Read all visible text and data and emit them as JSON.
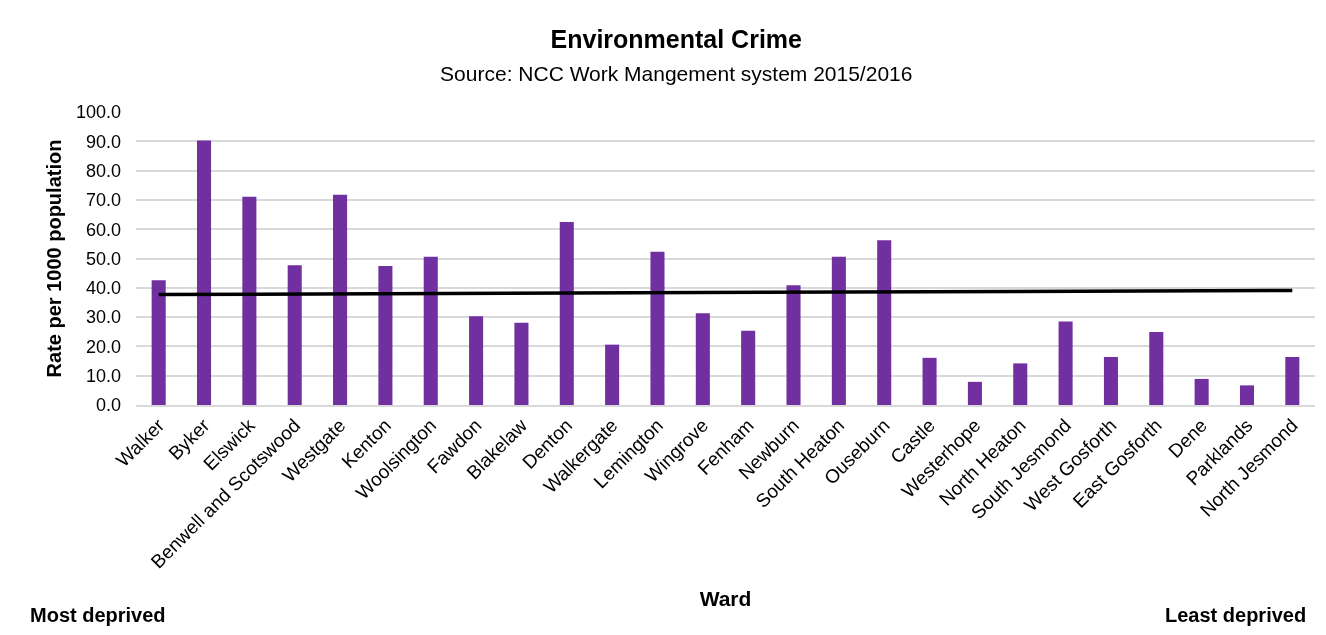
{
  "chart_data": {
    "type": "bar",
    "title": "Environmental Crime",
    "subtitle": "Source: NCC Work Mangement system 2015/2016",
    "xlabel": "Ward",
    "ylabel": "Rate per 1000 population",
    "annotations": [
      "Most deprived",
      "Least deprived"
    ],
    "categories": [
      "Walker",
      "Byker",
      "Elswick",
      "Benwell and Scotswood",
      "Westgate",
      "Kenton",
      "Woolsington",
      "Fawdon",
      "Blakelaw",
      "Denton",
      "Walkergate",
      "Lemington",
      "Wingrove",
      "Fenham",
      "Newburn",
      "South Heaton",
      "Ouseburn",
      "Castle",
      "Westerhope",
      "North Heaton",
      "South Jesmond",
      "West Gosforth",
      "East Gosforth",
      "Dene",
      "Parklands",
      "North Jesmond"
    ],
    "series": [
      {
        "color": "#7030a0",
        "values": [
          42.6,
          90.3,
          71.1,
          47.7,
          71.8,
          47.4,
          50.6,
          30.3,
          28.1,
          62.5,
          20.6,
          52.3,
          31.3,
          25.3,
          40.9,
          50.6,
          56.2,
          16.1,
          7.9,
          14.2,
          28.5,
          16.4,
          24.9,
          8.9,
          6.7,
          16.4
        ]
      },
      {
        "type": "line",
        "color": "#000000",
        "x": [
          "Walker",
          "North Jesmond"
        ],
        "values": [
          37.7,
          39.1
        ]
      }
    ],
    "ylim": [
      0,
      100
    ],
    "yticks": [
      {
        "value": 0,
        "label": "0.0"
      },
      {
        "value": 10,
        "label": "10.0"
      },
      {
        "value": 20,
        "label": "20.0"
      },
      {
        "value": 30,
        "label": "30.0"
      },
      {
        "value": 40,
        "label": "40.0"
      },
      {
        "value": 50,
        "label": "50.0"
      },
      {
        "value": 60,
        "label": "60.0"
      },
      {
        "value": 70,
        "label": "70.0"
      },
      {
        "value": 80,
        "label": "80.0"
      },
      {
        "value": 90,
        "label": "90.0"
      },
      {
        "value": 100,
        "label": "100.0"
      }
    ],
    "grid": "y"
  }
}
